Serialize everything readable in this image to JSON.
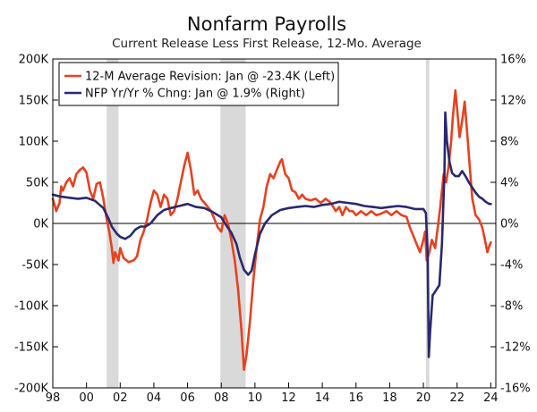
{
  "chart_data": {
    "type": "line",
    "title": "Nonfarm Payrolls",
    "subtitle": "Current Release Less First Release, 12-Mo. Average",
    "x_range": [
      1998,
      2024.3
    ],
    "x_ticks": [
      {
        "value": 1998,
        "label": "98"
      },
      {
        "value": 2000,
        "label": "00"
      },
      {
        "value": 2002,
        "label": "02"
      },
      {
        "value": 2004,
        "label": "04"
      },
      {
        "value": 2006,
        "label": "06"
      },
      {
        "value": 2008,
        "label": "08"
      },
      {
        "value": 2010,
        "label": "10"
      },
      {
        "value": 2012,
        "label": "12"
      },
      {
        "value": 2014,
        "label": "14"
      },
      {
        "value": 2016,
        "label": "16"
      },
      {
        "value": 2018,
        "label": "18"
      },
      {
        "value": 2020,
        "label": "20"
      },
      {
        "value": 2022,
        "label": "22"
      },
      {
        "value": 2024,
        "label": "24"
      }
    ],
    "y_left": {
      "range": [
        -200,
        200
      ],
      "unit": "thousands",
      "ticks": [
        {
          "value": 200,
          "label": "200K"
        },
        {
          "value": 150,
          "label": "150K"
        },
        {
          "value": 100,
          "label": "100K"
        },
        {
          "value": 50,
          "label": "50K"
        },
        {
          "value": 0,
          "label": "0K"
        },
        {
          "value": -50,
          "label": "-50K"
        },
        {
          "value": -100,
          "label": "-100K"
        },
        {
          "value": -150,
          "label": "-150K"
        },
        {
          "value": -200,
          "label": "-200K"
        }
      ]
    },
    "y_right": {
      "range": [
        -16,
        16
      ],
      "unit": "percent",
      "ticks": [
        {
          "value": 16,
          "label": "16%"
        },
        {
          "value": 12,
          "label": "12%"
        },
        {
          "value": 8,
          "label": "8%"
        },
        {
          "value": 4,
          "label": "4%"
        },
        {
          "value": 0,
          "label": "0%"
        },
        {
          "value": -4,
          "label": "-4%"
        },
        {
          "value": -8,
          "label": "-8%"
        },
        {
          "value": -12,
          "label": "-12%"
        },
        {
          "value": -16,
          "label": "-16%"
        }
      ]
    },
    "recessions": [
      [
        2001.2,
        2001.9
      ],
      [
        2007.95,
        2009.45
      ],
      [
        2020.15,
        2020.35
      ]
    ],
    "legend_placement": "top-left",
    "series": [
      {
        "name": "12-M Average Revision: Jan @ -23.4K (Left)",
        "axis": "left",
        "color": "#e8411e",
        "points": [
          [
            1998.0,
            30
          ],
          [
            1998.2,
            15
          ],
          [
            1998.4,
            25
          ],
          [
            1998.5,
            45
          ],
          [
            1998.6,
            40
          ],
          [
            1998.8,
            50
          ],
          [
            1999.0,
            55
          ],
          [
            1999.2,
            45
          ],
          [
            1999.4,
            60
          ],
          [
            1999.6,
            65
          ],
          [
            1999.8,
            68
          ],
          [
            2000.0,
            62
          ],
          [
            2000.2,
            40
          ],
          [
            2000.4,
            30
          ],
          [
            2000.6,
            48
          ],
          [
            2000.8,
            50
          ],
          [
            2001.0,
            30
          ],
          [
            2001.2,
            5
          ],
          [
            2001.35,
            -10
          ],
          [
            2001.5,
            -30
          ],
          [
            2001.6,
            -48
          ],
          [
            2001.7,
            -35
          ],
          [
            2001.8,
            -40
          ],
          [
            2001.9,
            -45
          ],
          [
            2002.0,
            -30
          ],
          [
            2002.2,
            -42
          ],
          [
            2002.5,
            -47
          ],
          [
            2002.8,
            -45
          ],
          [
            2003.0,
            -40
          ],
          [
            2003.2,
            -20
          ],
          [
            2003.4,
            -10
          ],
          [
            2003.6,
            5
          ],
          [
            2003.8,
            25
          ],
          [
            2004.0,
            40
          ],
          [
            2004.2,
            35
          ],
          [
            2004.4,
            20
          ],
          [
            2004.6,
            35
          ],
          [
            2004.8,
            30
          ],
          [
            2005.0,
            10
          ],
          [
            2005.2,
            15
          ],
          [
            2005.4,
            30
          ],
          [
            2005.6,
            50
          ],
          [
            2005.8,
            70
          ],
          [
            2006.0,
            86
          ],
          [
            2006.2,
            65
          ],
          [
            2006.4,
            35
          ],
          [
            2006.6,
            40
          ],
          [
            2006.8,
            30
          ],
          [
            2007.0,
            25
          ],
          [
            2007.2,
            20
          ],
          [
            2007.4,
            15
          ],
          [
            2007.6,
            5
          ],
          [
            2007.8,
            -5
          ],
          [
            2008.0,
            -10
          ],
          [
            2008.2,
            10
          ],
          [
            2008.4,
            0
          ],
          [
            2008.6,
            -20
          ],
          [
            2008.8,
            -45
          ],
          [
            2009.0,
            -80
          ],
          [
            2009.2,
            -130
          ],
          [
            2009.35,
            -178
          ],
          [
            2009.5,
            -160
          ],
          [
            2009.7,
            -120
          ],
          [
            2009.9,
            -70
          ],
          [
            2010.1,
            -30
          ],
          [
            2010.3,
            5
          ],
          [
            2010.5,
            20
          ],
          [
            2010.7,
            45
          ],
          [
            2010.9,
            60
          ],
          [
            2011.1,
            55
          ],
          [
            2011.3,
            65
          ],
          [
            2011.5,
            75
          ],
          [
            2011.6,
            78
          ],
          [
            2011.8,
            60
          ],
          [
            2012.0,
            55
          ],
          [
            2012.2,
            40
          ],
          [
            2012.4,
            38
          ],
          [
            2012.6,
            30
          ],
          [
            2012.8,
            35
          ],
          [
            2013.0,
            30
          ],
          [
            2013.3,
            28
          ],
          [
            2013.6,
            30
          ],
          [
            2013.9,
            25
          ],
          [
            2014.2,
            30
          ],
          [
            2014.5,
            25
          ],
          [
            2014.8,
            15
          ],
          [
            2015.0,
            20
          ],
          [
            2015.2,
            10
          ],
          [
            2015.4,
            20
          ],
          [
            2015.6,
            15
          ],
          [
            2015.8,
            15
          ],
          [
            2016.0,
            10
          ],
          [
            2016.3,
            15
          ],
          [
            2016.6,
            10
          ],
          [
            2016.9,
            15
          ],
          [
            2017.2,
            10
          ],
          [
            2017.5,
            12
          ],
          [
            2017.8,
            15
          ],
          [
            2018.1,
            10
          ],
          [
            2018.4,
            15
          ],
          [
            2018.7,
            10
          ],
          [
            2019.0,
            8
          ],
          [
            2019.2,
            -5
          ],
          [
            2019.4,
            -15
          ],
          [
            2019.6,
            -25
          ],
          [
            2019.8,
            -35
          ],
          [
            2020.0,
            -20
          ],
          [
            2020.1,
            -10
          ],
          [
            2020.2,
            -45
          ],
          [
            2020.35,
            -35
          ],
          [
            2020.5,
            -20
          ],
          [
            2020.7,
            -30
          ],
          [
            2020.85,
            -5
          ],
          [
            2021.0,
            20
          ],
          [
            2021.2,
            60
          ],
          [
            2021.35,
            50
          ],
          [
            2021.5,
            70
          ],
          [
            2021.65,
            100
          ],
          [
            2021.75,
            130
          ],
          [
            2021.9,
            162
          ],
          [
            2022.0,
            140
          ],
          [
            2022.15,
            105
          ],
          [
            2022.3,
            125
          ],
          [
            2022.45,
            148
          ],
          [
            2022.6,
            110
          ],
          [
            2022.75,
            70
          ],
          [
            2022.9,
            30
          ],
          [
            2023.1,
            10
          ],
          [
            2023.3,
            5
          ],
          [
            2023.5,
            -5
          ],
          [
            2023.65,
            -20
          ],
          [
            2023.8,
            -35
          ],
          [
            2023.9,
            -28
          ],
          [
            2024.0,
            -23
          ]
        ]
      },
      {
        "name": "NFP Yr/Yr % Chng: Jan @ 1.9% (Right)",
        "axis": "right",
        "color": "#2a2870",
        "points": [
          [
            1998.0,
            2.8
          ],
          [
            1998.5,
            2.6
          ],
          [
            1999.0,
            2.5
          ],
          [
            1999.5,
            2.4
          ],
          [
            2000.0,
            2.5
          ],
          [
            2000.5,
            2.2
          ],
          [
            2001.0,
            1.5
          ],
          [
            2001.3,
            0.5
          ],
          [
            2001.5,
            -0.3
          ],
          [
            2001.8,
            -1.0
          ],
          [
            2002.0,
            -1.3
          ],
          [
            2002.3,
            -1.5
          ],
          [
            2002.6,
            -1.2
          ],
          [
            2002.9,
            -0.6
          ],
          [
            2003.2,
            -0.3
          ],
          [
            2003.5,
            -0.3
          ],
          [
            2003.8,
            0.0
          ],
          [
            2004.2,
            0.8
          ],
          [
            2004.6,
            1.3
          ],
          [
            2005.0,
            1.5
          ],
          [
            2005.5,
            1.7
          ],
          [
            2006.0,
            1.9
          ],
          [
            2006.5,
            1.6
          ],
          [
            2007.0,
            1.5
          ],
          [
            2007.5,
            1.1
          ],
          [
            2008.0,
            0.6
          ],
          [
            2008.3,
            -0.2
          ],
          [
            2008.6,
            -0.9
          ],
          [
            2008.9,
            -2.0
          ],
          [
            2009.1,
            -3.3
          ],
          [
            2009.35,
            -4.5
          ],
          [
            2009.6,
            -5.0
          ],
          [
            2009.8,
            -4.6
          ],
          [
            2010.0,
            -3.0
          ],
          [
            2010.3,
            -1.0
          ],
          [
            2010.6,
            0.0
          ],
          [
            2011.0,
            0.8
          ],
          [
            2011.5,
            1.3
          ],
          [
            2012.0,
            1.5
          ],
          [
            2012.5,
            1.6
          ],
          [
            2013.0,
            1.7
          ],
          [
            2013.5,
            1.6
          ],
          [
            2014.0,
            1.8
          ],
          [
            2014.5,
            1.9
          ],
          [
            2015.0,
            2.1
          ],
          [
            2015.5,
            2.0
          ],
          [
            2016.0,
            1.9
          ],
          [
            2016.5,
            1.7
          ],
          [
            2017.0,
            1.6
          ],
          [
            2017.5,
            1.5
          ],
          [
            2018.0,
            1.6
          ],
          [
            2018.5,
            1.7
          ],
          [
            2019.0,
            1.6
          ],
          [
            2019.5,
            1.4
          ],
          [
            2020.0,
            1.4
          ],
          [
            2020.15,
            1.0
          ],
          [
            2020.25,
            -3.0
          ],
          [
            2020.32,
            -13.0
          ],
          [
            2020.4,
            -10.5
          ],
          [
            2020.55,
            -7.0
          ],
          [
            2020.75,
            -6.5
          ],
          [
            2020.95,
            -6.0
          ],
          [
            2021.1,
            -2.0
          ],
          [
            2021.25,
            5.0
          ],
          [
            2021.3,
            10.8
          ],
          [
            2021.4,
            8.0
          ],
          [
            2021.55,
            6.0
          ],
          [
            2021.7,
            4.9
          ],
          [
            2021.9,
            4.6
          ],
          [
            2022.1,
            4.6
          ],
          [
            2022.3,
            5.1
          ],
          [
            2022.5,
            4.6
          ],
          [
            2022.7,
            4.0
          ],
          [
            2022.9,
            3.5
          ],
          [
            2023.1,
            3.0
          ],
          [
            2023.3,
            2.6
          ],
          [
            2023.5,
            2.4
          ],
          [
            2023.7,
            2.1
          ],
          [
            2023.9,
            1.9
          ],
          [
            2024.0,
            1.9
          ]
        ]
      }
    ]
  }
}
